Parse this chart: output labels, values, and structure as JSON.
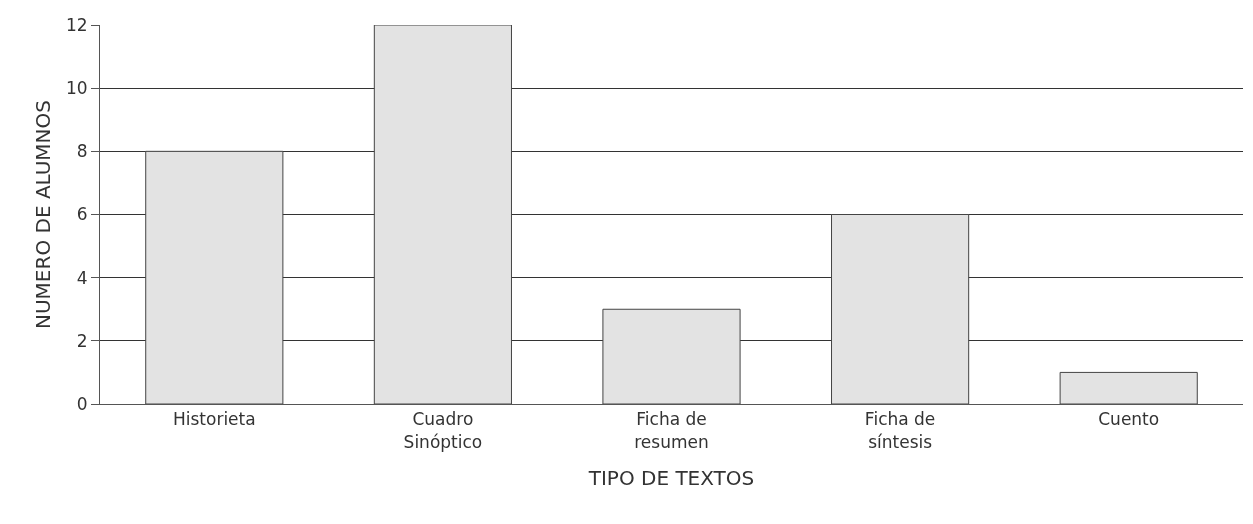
{
  "chart_data": {
    "type": "bar",
    "xlabel": "TIPO DE TEXTOS",
    "ylabel": "NUMERO DE ALUMNOS",
    "categories": [
      "Historieta",
      "Cuadro\nSinóptico",
      "Ficha de\nresumen",
      "Ficha de\nsíntesis",
      "Cuento"
    ],
    "values": [
      8,
      12,
      3,
      6,
      1
    ],
    "color": "#e3e3e3",
    "ylim": [
      0,
      12
    ],
    "yticks": [
      0,
      2,
      4,
      6,
      8,
      10,
      12
    ],
    "grid": "y"
  }
}
